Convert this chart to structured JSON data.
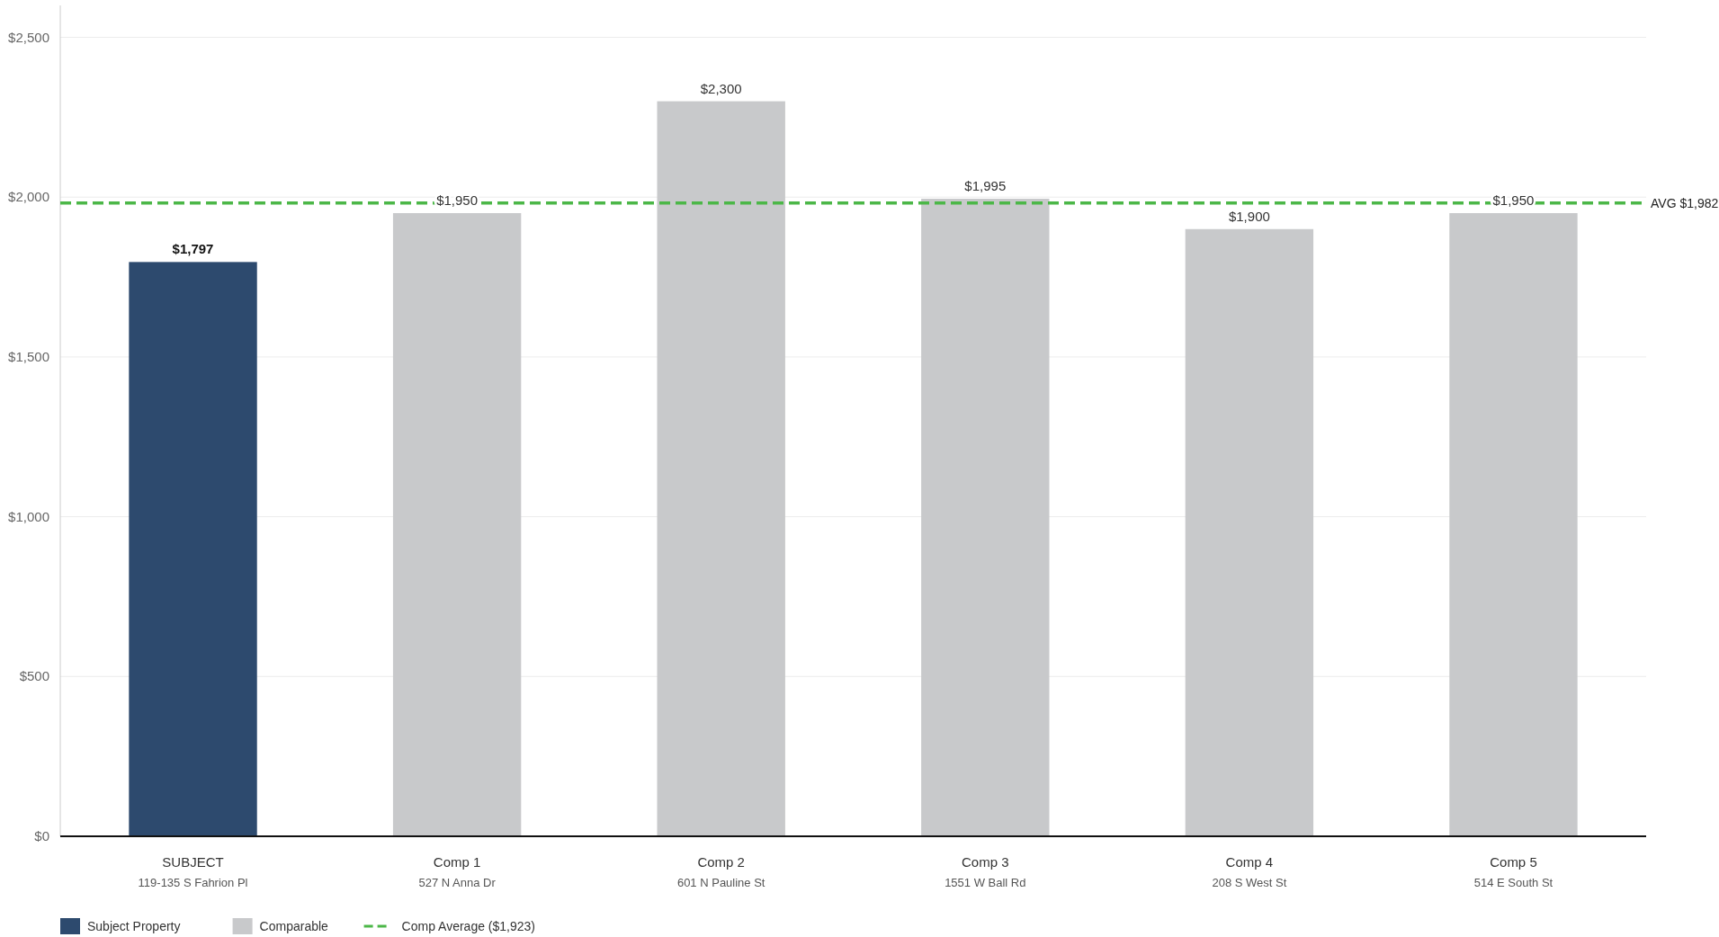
{
  "chart_data": {
    "type": "bar",
    "stacked": true,
    "categories": [
      "SUBJECT\n119-135 S Fahrion Pl",
      "Comp 1\n527 N Anna Dr",
      "Comp 2\n601 N Pauline St",
      "Comp 3\n1551 W Ball Rd",
      "Comp 4\n208 S West St",
      "Comp 5\n514 E South St"
    ],
    "series": [
      {
        "name": "Subject Property",
        "color": "#2d4a6e",
        "values": [
          1797,
          null,
          null,
          null,
          null,
          null
        ],
        "value_labels": [
          "$1,797",
          null,
          null,
          null,
          null,
          null
        ]
      },
      {
        "name": "Comparable",
        "color": "#c8c9cb",
        "values": [
          null,
          1950,
          2300,
          1995,
          1900,
          1950
        ],
        "value_labels": [
          null,
          "$1,950",
          "$2,300",
          "$1,995",
          "$1,900",
          "$1,950"
        ]
      }
    ],
    "ylim": [
      0,
      2600
    ],
    "yticks": [
      {
        "value": 0,
        "label": "$0"
      },
      {
        "value": 500,
        "label": "$500"
      },
      {
        "value": 1000,
        "label": "$1,000"
      },
      {
        "value": 1500,
        "label": "$1,500"
      },
      {
        "value": 2000,
        "label": "$2,000"
      },
      {
        "value": 2500,
        "label": "$2,500"
      }
    ],
    "grid": "y",
    "ref_lines": [
      {
        "axis": "y",
        "value": 1982,
        "label": "AVG $1,982",
        "color": "#4cb748",
        "line_style": "dashed"
      }
    ],
    "annotations": [
      "Comp Average ($1,923)"
    ],
    "legend": "bottom left"
  }
}
